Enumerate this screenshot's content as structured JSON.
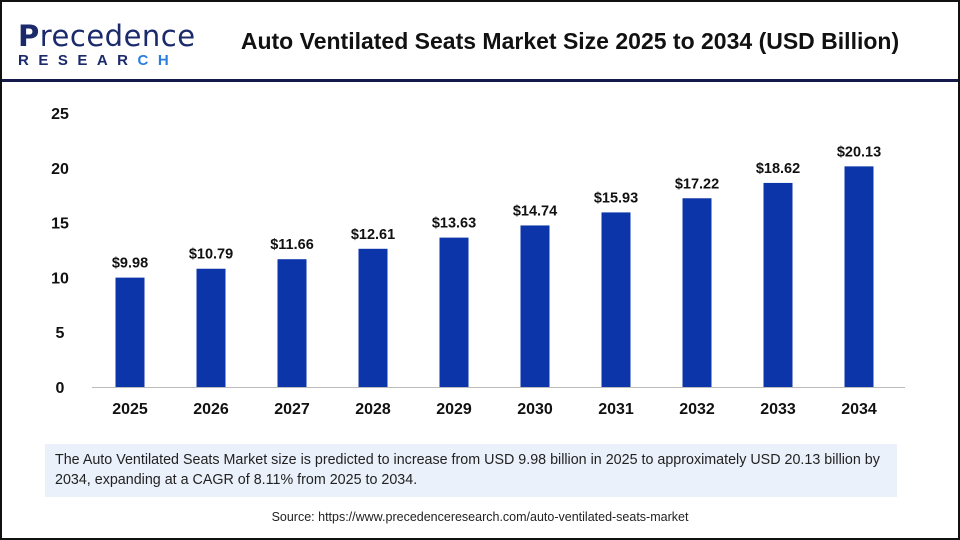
{
  "logo": {
    "text": "Precedence",
    "sub": "RESEARCH"
  },
  "title": "Auto Ventilated Seats Market Size 2025 to 2034 (USD Billion)",
  "chart_data": {
    "type": "bar",
    "title": "Auto Ventilated Seats Market Size 2025 to 2034 (USD Billion)",
    "categories": [
      "2025",
      "2026",
      "2027",
      "2028",
      "2029",
      "2030",
      "2031",
      "2032",
      "2033",
      "2034"
    ],
    "values": [
      9.98,
      10.79,
      11.66,
      12.61,
      13.63,
      14.74,
      15.93,
      17.22,
      18.62,
      20.13
    ],
    "data_labels": [
      "$9.98",
      "$10.79",
      "$11.66",
      "$12.61",
      "$13.63",
      "$14.74",
      "$15.93",
      "$17.22",
      "$18.62",
      "$20.13"
    ],
    "ylim": [
      0,
      25
    ],
    "yticks": [
      0,
      5,
      10,
      15,
      20,
      25
    ],
    "grid": false,
    "bar_color": "#0b35a8",
    "xlabel": "",
    "ylabel": ""
  },
  "summary": "The Auto Ventilated Seats Market size is predicted to increase from USD 9.98 billion in 2025 to approximately USD 20.13 billion by 2034, expanding at a CAGR of 8.11% from 2025 to 2034.",
  "source": "Source: https://www.precedenceresearch.com/auto-ventilated-seats-market"
}
